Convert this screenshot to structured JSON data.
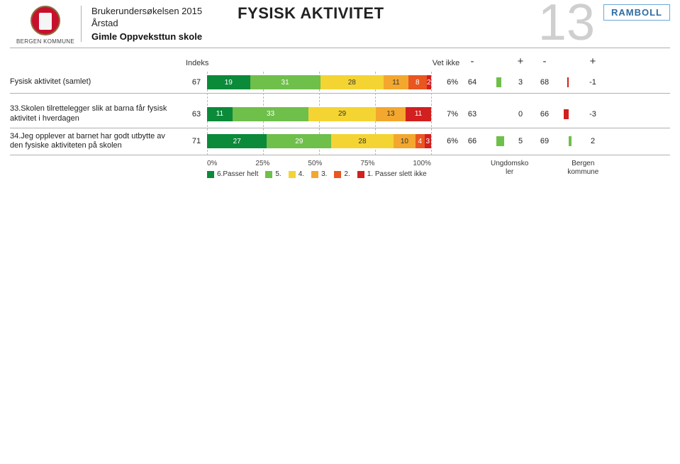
{
  "header": {
    "kommune": "BERGEN KOMMUNE",
    "line1": "Brukerundersøkelsen 2015",
    "line2": "Årstad",
    "line3": "Gimle Oppveksttun skole",
    "main_title": "FYSISK AKTIVITET",
    "page_number": "13",
    "brand": "RAMBOLL"
  },
  "columns": {
    "indeks": "Indeks",
    "vet_ikke": "Vet ikke",
    "minus": "-",
    "plus": "+"
  },
  "colors": {
    "c6": "#0b8a3a",
    "c5": "#6fbf4b",
    "c4": "#f4d433",
    "c3": "#f3a72e",
    "c2": "#e9561f",
    "c1": "#d21f1f",
    "minibar_pos": "#6fbf4b",
    "minibar_neg": "#d21f1f",
    "gridline": "#b8b8b8",
    "text_on_dark": "#ffffff",
    "text_on_light": "#333333"
  },
  "chart": {
    "xlim": [
      0,
      100
    ],
    "xticks": [
      "0%",
      "25%",
      "50%",
      "75%",
      "100%"
    ],
    "legend": [
      {
        "label": "6.Passer helt",
        "color": "#0b8a3a"
      },
      {
        "label": "5.",
        "color": "#6fbf4b"
      },
      {
        "label": "4.",
        "color": "#f4d433"
      },
      {
        "label": "3.",
        "color": "#f3a72e"
      },
      {
        "label": "2.",
        "color": "#e9561f"
      },
      {
        "label": "1. Passer slett ikke",
        "color": "#d21f1f"
      }
    ]
  },
  "footer": {
    "col1": "Ungdomsko\nler",
    "col2": "Bergen\nkommune"
  },
  "rows": [
    {
      "id": "samlet",
      "label": "Fysisk aktivitet (samlet)",
      "indeks": 67,
      "segments": [
        {
          "v": 19,
          "c": "#0b8a3a",
          "tc": "#ffffff"
        },
        {
          "v": 31,
          "c": "#6fbf4b",
          "tc": "#ffffff"
        },
        {
          "v": 28,
          "c": "#f4d433",
          "tc": "#333333"
        },
        {
          "v": 11,
          "c": "#f3a72e",
          "tc": "#333333"
        },
        {
          "v": 8,
          "c": "#e9561f",
          "tc": "#ffffff"
        },
        {
          "v": 2,
          "c": "#d21f1f",
          "tc": "#ffffff"
        }
      ],
      "vet_ikke": "6%",
      "comp1": {
        "base": 64,
        "diff": 3
      },
      "comp2": {
        "base": 68,
        "diff": -1
      }
    },
    {
      "id": "q33",
      "label": "33.Skolen tilrettelegger slik at barna får fysisk aktivitet i hverdagen",
      "indeks": 63,
      "segments": [
        {
          "v": 11,
          "c": "#0b8a3a",
          "tc": "#ffffff"
        },
        {
          "v": 33,
          "c": "#6fbf4b",
          "tc": "#ffffff"
        },
        {
          "v": 29,
          "c": "#f4d433",
          "tc": "#333333"
        },
        {
          "v": 13,
          "c": "#f3a72e",
          "tc": "#333333"
        },
        {
          "v": 11,
          "c": "#d21f1f",
          "tc": "#ffffff"
        }
      ],
      "vet_ikke": "7%",
      "comp1": {
        "base": 63,
        "diff": 0
      },
      "comp2": {
        "base": 66,
        "diff": -3
      }
    },
    {
      "id": "q34",
      "label": "34.Jeg opplever at barnet har godt utbytte av den fysiske aktiviteten på skolen",
      "indeks": 71,
      "segments": [
        {
          "v": 27,
          "c": "#0b8a3a",
          "tc": "#ffffff"
        },
        {
          "v": 29,
          "c": "#6fbf4b",
          "tc": "#ffffff"
        },
        {
          "v": 28,
          "c": "#f4d433",
          "tc": "#333333"
        },
        {
          "v": 10,
          "c": "#f3a72e",
          "tc": "#333333"
        },
        {
          "v": 4,
          "c": "#e9561f",
          "tc": "#ffffff"
        },
        {
          "v": 3,
          "c": "#d21f1f",
          "tc": "#ffffff"
        }
      ],
      "vet_ikke": "6%",
      "comp1": {
        "base": 66,
        "diff": 5
      },
      "comp2": {
        "base": 69,
        "diff": 2
      }
    }
  ],
  "minibar": {
    "max_abs": 10
  }
}
